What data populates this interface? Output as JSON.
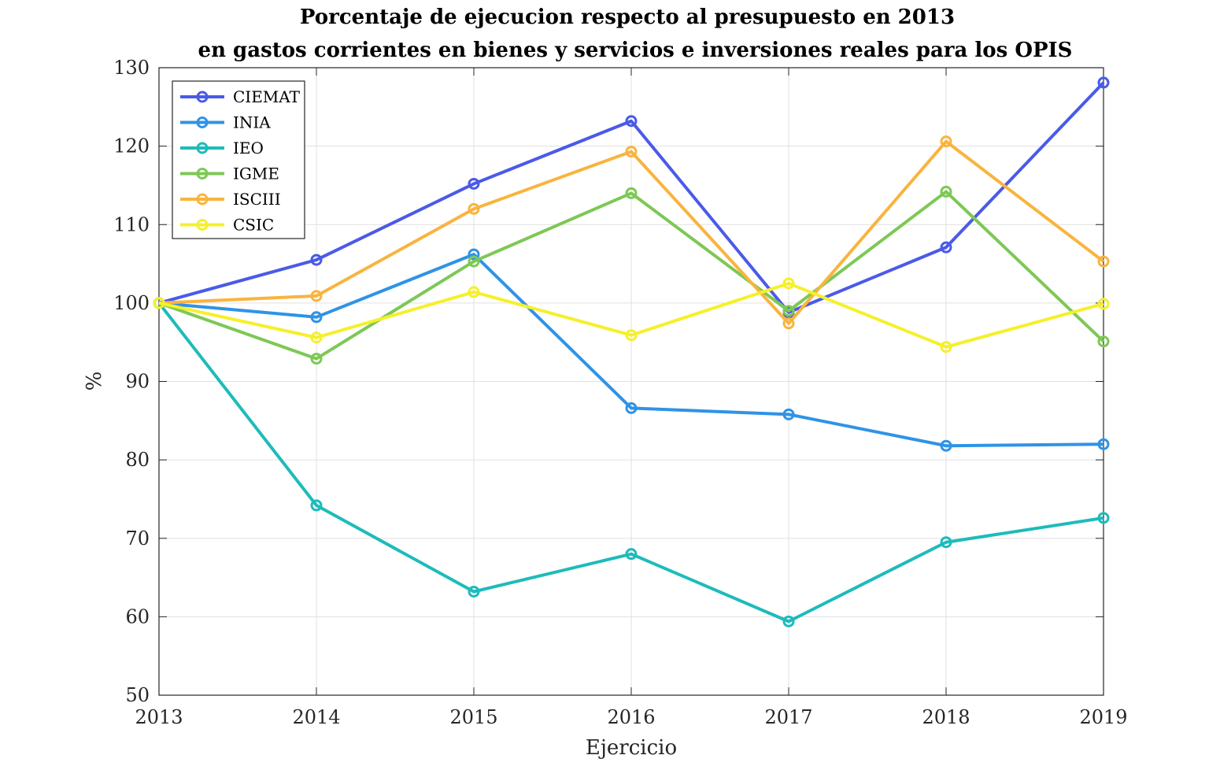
{
  "chart_data": {
    "type": "line",
    "title": [
      "Porcentaje de ejecucion respecto al presupuesto en 2013",
      "en gastos corrientes en bienes y servicios e inversiones reales para los OPIS"
    ],
    "xlabel": "Ejercicio",
    "ylabel": "%",
    "x": [
      2013,
      2014,
      2015,
      2016,
      2017,
      2018,
      2019
    ],
    "xticks": [
      "2013",
      "2014",
      "2015",
      "2016",
      "2017",
      "2018",
      "2019"
    ],
    "yticks": [
      "50",
      "60",
      "70",
      "80",
      "90",
      "100",
      "110",
      "120",
      "130"
    ],
    "ylim": [
      50,
      130
    ],
    "xlim": [
      2013,
      2019
    ],
    "grid": true,
    "legend_position": "top-left",
    "series": [
      {
        "name": "CIEMAT",
        "color": "#4a5ae8",
        "values": [
          100,
          105.5,
          115.2,
          123.2,
          98.8,
          107.1,
          128.1
        ]
      },
      {
        "name": "INIA",
        "color": "#2f93e6",
        "values": [
          100,
          98.2,
          106.2,
          86.6,
          85.8,
          81.8,
          82.0
        ]
      },
      {
        "name": "IEO",
        "color": "#1ebbbb",
        "values": [
          100,
          74.2,
          63.2,
          68.0,
          59.4,
          69.5,
          72.6
        ]
      },
      {
        "name": "IGME",
        "color": "#7dc855",
        "values": [
          100,
          92.9,
          105.3,
          114.0,
          99.0,
          114.2,
          95.1
        ]
      },
      {
        "name": "ISCIII",
        "color": "#f9b43e",
        "values": [
          100,
          100.9,
          112.0,
          119.3,
          97.4,
          120.6,
          105.3
        ]
      },
      {
        "name": "CSIC",
        "color": "#f5f02a",
        "values": [
          100,
          95.6,
          101.4,
          95.9,
          102.5,
          94.4,
          99.9
        ]
      }
    ]
  }
}
